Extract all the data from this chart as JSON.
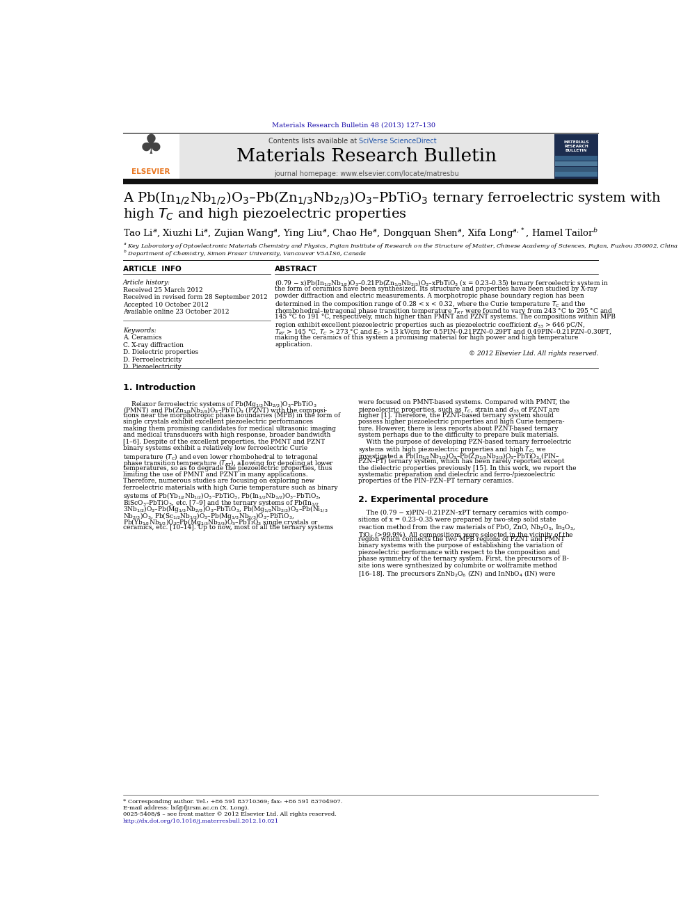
{
  "page_width": 9.92,
  "page_height": 13.23,
  "bg_color": "#ffffff",
  "top_citation": "Materials Research Bulletin 48 (2013) 127–130",
  "top_citation_color": "#1a0dab",
  "header_bg": "#e6e6e6",
  "header_contents_text": "Contents lists available at ",
  "header_sciverse": "SciVerse ScienceDirect",
  "header_sciverse_color": "#2255aa",
  "journal_title": "Materials Research Bulletin",
  "journal_homepage": "journal homepage: www.elsevier.com/locate/matresbu",
  "black_bar_color": "#111111",
  "article_title_line1": "A Pb(In$_{1/2}$Nb$_{1/2}$)O$_3$–Pb(Zn$_{1/3}$Nb$_{2/3}$)O$_3$–PbTiO$_3$ ternary ferroelectric system with",
  "article_title_line2": "high $T_C$ and high piezoelectric properties",
  "authors_str": "Tao Li$^a$, Xiuzhi Li$^a$, Zujian Wang$^a$, Ying Liu$^a$, Chao He$^a$, Dongquan Shen$^a$, Xifa Long$^{a,*}$, Hamel Tailor$^b$",
  "affil_a": "$^a$ Key Laboratory of Optoelectronic Materials Chemistry and Physics, Fujian Institute of Research on the Structure of Matter, Chinese Academy of Sciences, Fujian, Fuzhou 350002, China",
  "affil_b": "$^b$ Department of Chemistry, Simon Fraser University, Vancouver V5A1S6, Canada",
  "article_info_title": "ARTICLE  INFO",
  "abstract_title": "ABSTRACT",
  "article_history_label": "Article history:",
  "dates": [
    "Received 25 March 2012",
    "Received in revised form 28 September 2012",
    "Accepted 10 October 2012",
    "Available online 23 October 2012"
  ],
  "keywords_label": "Keywords:",
  "keywords": [
    "A. Ceramics",
    "C. X-ray diffraction",
    "D. Dielectric properties",
    "D. Ferroelectricity",
    "D. Piezoelectricity"
  ],
  "abstract_lines": [
    "(0.79 − x)Pb(In$_{1/2}$Nb$_{1/2}$)O$_3$–0.21Pb(Zn$_{1/3}$Nb$_{2/3}$)O$_3$–xPbTiO$_3$ (x = 0.23–0.35) ternary ferroelectric system in",
    "the form of ceramics have been synthesized. Its structure and properties have been studied by X-ray",
    "powder diffraction and electric measurements. A morphotropic phase boundary region has been",
    "determined in the composition range of 0.28 < x < 0.32, where the Curie temperature $T_C$ and the",
    "rhombohedral–tetragonal phase transition temperature $T_{RT}$ were found to vary from 243 °C to 295 °C and",
    "145 °C to 191 °C, respectively, much higher than PMNT and PZNT systems. The compositions within MPB",
    "region exhibit excellent piezoelectric properties such as piezoelectric coefficient $d_{33}$ > 646 pC/N,",
    "$T_{RT}$ > 145 °C, $T_C$ > 273 °C and $E_C$ > 13 kV/cm for 0.5PIN–0.21PZN–0.29PT and 0.49PIN–0.21PZN–0.30PT,",
    "making the ceramics of this system a promising material for high power and high temperature",
    "application."
  ],
  "copyright": "© 2012 Elsevier Ltd. All rights reserved.",
  "intro_title": "1. Introduction",
  "intro_col1_lines": [
    "    Relaxor ferroelectric systems of Pb(Mg$_{1/3}$Nb$_{2/3}$)O$_3$–PbTiO$_3$",
    "(PMNT) and Pb(Zn$_{1/3}$Nb$_{2/3}$)O$_3$–PbTiO$_3$ (PZNT) with the composi-",
    "tions near the morphotropic phase boundaries (MPB) in the form of",
    "single crystals exhibit excellent piezoelectric performances",
    "making them promising candidates for medical ultrasonic imaging",
    "and medical transducers with high response, broader bandwidth",
    "[1–6]. Despite of the excellent properties, the PMNT and PZNT",
    "binary systems exhibit a relatively low ferroelectric Curie",
    "temperature ($T_C$) and even lower rhombohedral to tetragonal",
    "phase transition temperature ($T_{RT}$), allowing for depoling at lower",
    "temperatures, so as to degrade the piezoelectric properties, thus",
    "limiting the use of PMNT and PZNT in many applications.",
    "Therefore, numerous studies are focusing on exploring new",
    "ferroelectric materials with high Curie temperature such as binary",
    "systems of Pb(Yb$_{1/2}$Nb$_{1/2}$)O$_3$–PbTiO$_3$, Pb(In$_{1/2}$Nb$_{1/2}$)O$_3$–PbTiO$_3$,",
    "BiScO$_3$–PbTiO$_3$, etc. [7–9] and the ternary systems of Pb(In$_{1/2}$",
    "3Nb$_{1/2}$)O$_3$–Pb(Mg$_{1/3}$Nb$_{2/3}$)O$_3$–PbTiO$_3$, Pb(Mg$_{1/3}$Nb$_{2/3}$)O$_3$–Pb(Ni$_{1/3}$",
    "Nb$_{2/3}$)O$_3$, Pb(Sc$_{1/2}$Nb$_{1/2}$)O$_3$–Pb(Mg$_{1/3}$Nb$_{2/3}$)O$_3$–PbTiO$_3$,",
    "Pb(Yb$_{1/2}$Nb$_{1/2}$)O$_3$–Pb(Mg$_{1/3}$Nb$_{2/3}$)O$_3$–PbTiO$_3$ single crystals or",
    "ceramics, etc. [10–14]. Up to now, most of all the ternary systems"
  ],
  "intro_col2_lines": [
    "were focused on PMNT-based systems. Compared with PMNT, the",
    "piezoelectric properties, such as $T_C$, strain and $d_{33}$ of PZNT are",
    "higher [1]. Therefore, the PZNT-based ternary system should",
    "possess higher piezoelectric properties and high Curie tempera-",
    "ture. However, there is less reports about PZNT-based ternary",
    "system perhaps due to the difficulty to prepare bulk materials.",
    "    With the purpose of developing PZN-based ternary ferroelectric",
    "systems with high piezoelectric properties and high $T_C$, we",
    "investigated a Pb(In$_{1/2}$Nb$_{1/2}$)O$_3$–Pb(Zn$_{1/3}$Nb$_{2/3}$)O$_3$–PbTiO$_3$ (PIN–",
    "PZN–PT) ternary system, which has been rarely reported except",
    "the dielectric properties previously [15]. In this work, we report the",
    "systematic preparation and dielectric and ferro-/piezoelectric",
    "properties of the PIN–PZN–PT ternary ceramics."
  ],
  "section2_title": "2. Experimental procedure",
  "section2_col2_lines": [
    "    The (0.79 − x)PIN–0.21PZN–xPT ternary ceramics with compo-",
    "sitions of x = 0.23–0.35 were prepared by two-step solid state",
    "reaction method from the raw materials of PbO, ZnO, Nb$_2$O$_5$, In$_2$O$_3$,",
    "TiO$_2$ (>99.9%). All compositions were selected in the vicinity of the",
    "region which connects the two MPB regions of PZNT and PMNT",
    "binary systems with the purpose of establishing the variation of",
    "piezoelectric performance with respect to the composition and",
    "phase symmetry of the ternary system. First, the precursors of B-",
    "site ions were synthesized by columbite or wolframite method",
    "[16–18]. The precursors ZnNb$_2$O$_6$ (ZN) and InNbO$_4$ (IN) were"
  ],
  "footnote_star": "* Corresponding author. Tel.: +86 591 83710369; fax: +86 591 83704907.",
  "footnote_email": "E-mail address: lxf@fjirsm.ac.cn (X. Long).",
  "footer_text1": "0025-5408/$ – see front matter © 2012 Elsevier Ltd. All rights reserved.",
  "footer_url": "http://dx.doi.org/10.1016/j.materresbull.2012.10.021",
  "footer_url_color": "#1a0dab"
}
